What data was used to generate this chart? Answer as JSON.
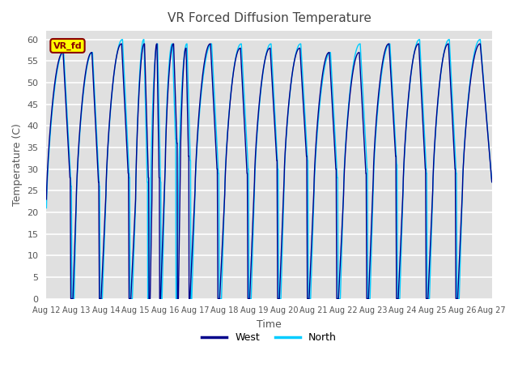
{
  "title": "VR Forced Diffusion Temperature",
  "xlabel": "Time",
  "ylabel": "Temperature (C)",
  "ylim": [
    0,
    62
  ],
  "yticks": [
    0,
    5,
    10,
    15,
    20,
    25,
    30,
    35,
    40,
    45,
    50,
    55,
    60
  ],
  "x_tick_labels": [
    "Aug 12",
    "Aug 13",
    "Aug 14",
    "Aug 15",
    "Aug 16",
    "Aug 17",
    "Aug 18",
    "Aug 19",
    "Aug 20",
    "Aug 21",
    "Aug 22",
    "Aug 23",
    "Aug 24",
    "Aug 25",
    "Aug 26",
    "Aug 27"
  ],
  "west_color": "#00008B",
  "north_color": "#00CCFF",
  "bg_color": "#E0E0E0",
  "label_color": "#555555",
  "annotation_text": "VR_fd",
  "annotation_bg": "#FFFF00",
  "annotation_border": "#8B0000",
  "title_color": "#444444"
}
